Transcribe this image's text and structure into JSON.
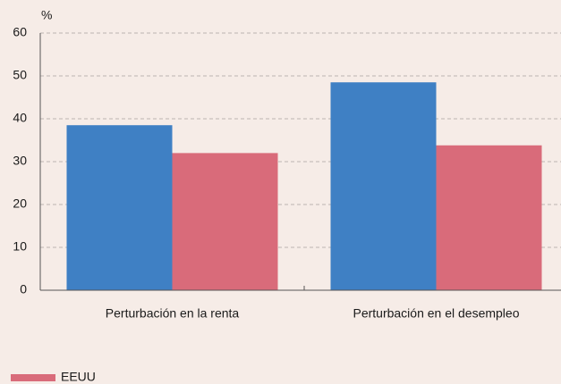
{
  "chart_data": {
    "type": "bar",
    "y_label": "%",
    "categories": [
      "Perturbación en la renta",
      "Perturbación en el desempleo"
    ],
    "series": [
      {
        "color": "#3f80c4",
        "values": [
          38.5,
          48.5
        ]
      },
      {
        "name": "EEUU",
        "color": "#d96b7a",
        "values": [
          32,
          33.8
        ]
      }
    ],
    "ylim": [
      0,
      60
    ],
    "yticks": [
      0,
      10,
      20,
      30,
      40,
      50,
      60
    ],
    "grid": true
  }
}
